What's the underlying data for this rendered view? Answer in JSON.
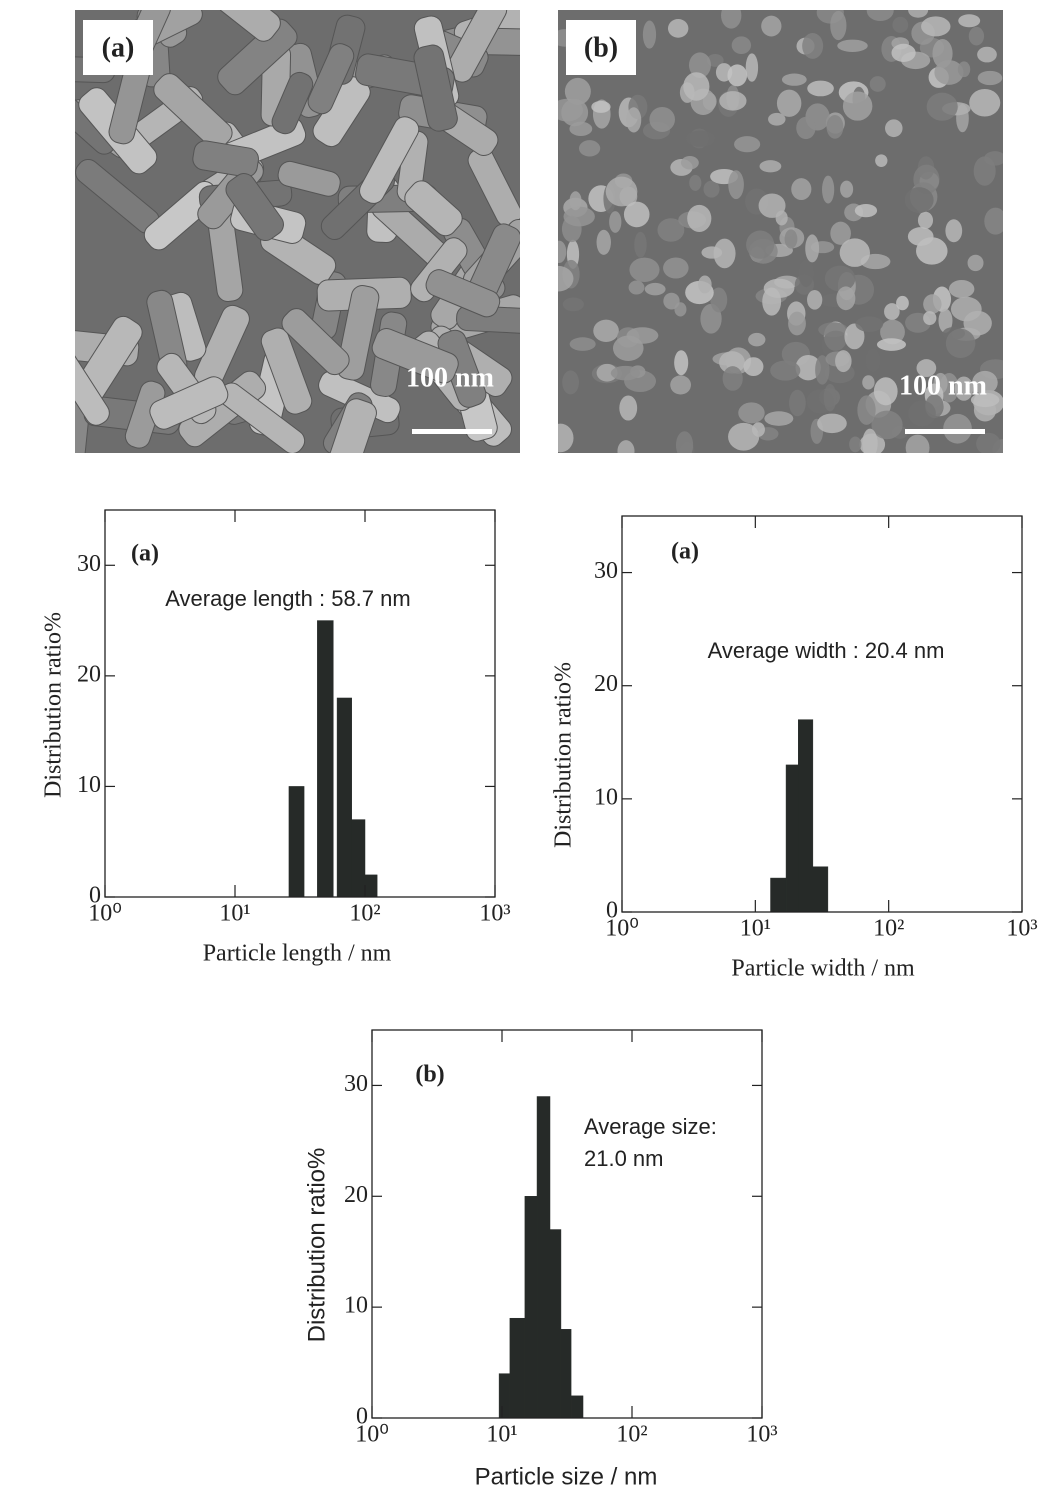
{
  "images": [
    {
      "label": "(a)",
      "scale_bar": "100 nm"
    },
    {
      "label": "(b)",
      "scale_bar": "100 nm"
    }
  ],
  "chart_data": [
    {
      "type": "histogram",
      "panel_label": "(a)",
      "annotation": "Average length : 58.7 nm",
      "xlabel": "Particle length / nm",
      "ylabel": "Distribution ratio%",
      "bins": [
        26,
        34,
        43,
        57,
        61,
        79,
        100,
        124
      ],
      "values": [
        10,
        0,
        25,
        0,
        18,
        7,
        2
      ],
      "color": "#262a28",
      "xscale": "log",
      "xlim": [
        1,
        1000
      ],
      "ylim": [
        0,
        35
      ],
      "xticks": [
        {
          "value": 1,
          "label": "10⁰"
        },
        {
          "value": 10,
          "label": "10¹"
        },
        {
          "value": 100,
          "label": "10²"
        },
        {
          "value": 1000,
          "label": "10³"
        }
      ],
      "yticks": [
        0,
        10,
        20,
        30
      ]
    },
    {
      "type": "histogram",
      "panel_label": "(a)",
      "annotation": "Average width : 20.4 nm",
      "xlabel": "Particle width / nm",
      "ylabel": "Distribution ratio%",
      "bins": [
        13,
        17,
        21,
        27,
        35
      ],
      "values": [
        3,
        13,
        17,
        4
      ],
      "color": "#262a28",
      "xscale": "log",
      "xlim": [
        1,
        1000
      ],
      "ylim": [
        0,
        35
      ],
      "xticks": [
        {
          "value": 1,
          "label": "10⁰"
        },
        {
          "value": 10,
          "label": "10¹"
        },
        {
          "value": 100,
          "label": "10²"
        },
        {
          "value": 1000,
          "label": "10³"
        }
      ],
      "yticks": [
        0,
        10,
        20,
        30
      ]
    },
    {
      "type": "histogram",
      "panel_label": "(b)",
      "annotation": [
        "Average size:",
        "21.0 nm"
      ],
      "xlabel": "Particle size / nm",
      "ylabel": "Distribution ratio%",
      "bins": [
        9.5,
        11.5,
        15,
        18.6,
        23.4,
        28.4,
        34,
        42
      ],
      "values": [
        4,
        9,
        20,
        29,
        17,
        8,
        2
      ],
      "color": "#262a28",
      "xscale": "log",
      "xlim": [
        1,
        1000
      ],
      "ylim": [
        0,
        35
      ],
      "xticks": [
        {
          "value": 1,
          "label": "10⁰"
        },
        {
          "value": 10,
          "label": "10¹"
        },
        {
          "value": 100,
          "label": "10²"
        },
        {
          "value": 1000,
          "label": "10³"
        }
      ],
      "yticks": [
        0,
        10,
        20,
        30
      ]
    }
  ]
}
